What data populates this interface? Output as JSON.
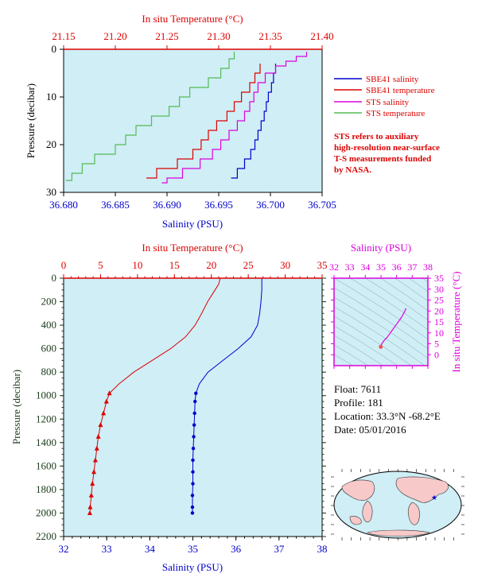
{
  "colors": {
    "red": "#dd0000",
    "blue": "#0000cc",
    "magenta": "#dd00dd",
    "green": "#55bb55",
    "plot_bg": "#cfeef6",
    "axis_dark": "#1a3a1a"
  },
  "chart_data": [
    {
      "type": "line",
      "xlabel": "Salinity (PSU)",
      "x2label": "In situ Temperature (°C)",
      "ylabel": "Pressure (decibar)",
      "xlim": [
        36.68,
        36.705
      ],
      "x2lim": [
        21.15,
        21.4
      ],
      "ylim": [
        30,
        0
      ],
      "x_ticks": [
        "36.680",
        "36.685",
        "36.690",
        "36.695",
        "36.700",
        "36.705"
      ],
      "x2_ticks": [
        "21.15",
        "21.20",
        "21.25",
        "21.30",
        "21.35",
        "21.40"
      ],
      "y_ticks": [
        "0",
        "10",
        "20",
        "30"
      ],
      "legend": {
        "position": "right",
        "entries": [
          {
            "label": "SBE41 salinity",
            "color": "#0000cc"
          },
          {
            "label": "SBE41 temperature",
            "color": "#dd0000"
          },
          {
            "label": "STS salinity",
            "color": "#dd00dd"
          },
          {
            "label": "STS temperature",
            "color": "#55bb55"
          }
        ]
      },
      "note": [
        "STS refers to auxiliary",
        "high-resolution near-surface",
        "T-S measurements funded",
        "by NASA."
      ],
      "series": [
        {
          "name": "SBE41 salinity",
          "axis": "salinity",
          "color": "#0000cc",
          "points": [
            [
              36.7005,
              3
            ],
            [
              36.7003,
              5
            ],
            [
              36.7001,
              7
            ],
            [
              36.6998,
              9
            ],
            [
              36.6996,
              11
            ],
            [
              36.6994,
              13
            ],
            [
              36.6991,
              15
            ],
            [
              36.6988,
              17
            ],
            [
              36.6985,
              19
            ],
            [
              36.6981,
              21
            ],
            [
              36.6975,
              23
            ],
            [
              36.6968,
              25
            ],
            [
              36.6962,
              27
            ]
          ]
        },
        {
          "name": "SBE41 temperature",
          "axis": "temperature",
          "color": "#dd0000",
          "points": [
            [
              21.34,
              3
            ],
            [
              21.335,
              5
            ],
            [
              21.33,
              7
            ],
            [
              21.322,
              9
            ],
            [
              21.315,
              11
            ],
            [
              21.308,
              13
            ],
            [
              21.298,
              15
            ],
            [
              21.29,
              17
            ],
            [
              21.283,
              19
            ],
            [
              21.275,
              21
            ],
            [
              21.26,
              23
            ],
            [
              21.24,
              25
            ],
            [
              21.23,
              27
            ]
          ]
        },
        {
          "name": "STS salinity",
          "axis": "salinity",
          "color": "#dd00dd",
          "points": [
            [
              36.7035,
              0.5
            ],
            [
              36.7025,
              1.5
            ],
            [
              36.7015,
              2.5
            ],
            [
              36.7005,
              3.5
            ],
            [
              36.6995,
              5
            ],
            [
              36.6988,
              7
            ],
            [
              36.6984,
              9
            ],
            [
              36.698,
              11
            ],
            [
              36.6975,
              13
            ],
            [
              36.6968,
              15
            ],
            [
              36.696,
              17
            ],
            [
              36.6952,
              19
            ],
            [
              36.6944,
              21
            ],
            [
              36.6932,
              23
            ],
            [
              36.6915,
              25
            ],
            [
              36.69,
              27
            ],
            [
              36.6895,
              28
            ]
          ]
        },
        {
          "name": "STS temperature",
          "axis": "temperature",
          "color": "#55bb55",
          "points": [
            [
              21.315,
              0.5
            ],
            [
              21.31,
              2
            ],
            [
              21.302,
              4
            ],
            [
              21.29,
              6
            ],
            [
              21.272,
              8
            ],
            [
              21.262,
              10
            ],
            [
              21.252,
              12
            ],
            [
              21.235,
              14
            ],
            [
              21.22,
              16
            ],
            [
              21.21,
              18
            ],
            [
              21.2,
              20
            ],
            [
              21.18,
              22
            ],
            [
              21.168,
              24
            ],
            [
              21.158,
              26
            ],
            [
              21.152,
              27.5
            ]
          ]
        }
      ]
    },
    {
      "type": "line",
      "xlabel": "Salinity (PSU)",
      "x2label": "In situ Temperature (°C)",
      "ylabel": "Pressure (decibar)",
      "xlim": [
        32,
        38
      ],
      "x2lim": [
        0,
        35
      ],
      "ylim": [
        2200,
        0
      ],
      "x_ticks": [
        "32",
        "33",
        "34",
        "35",
        "36",
        "37",
        "38"
      ],
      "x2_ticks": [
        "0",
        "5",
        "10",
        "15",
        "20",
        "25",
        "30",
        "35"
      ],
      "y_ticks": [
        "0",
        "200",
        "400",
        "600",
        "800",
        "1000",
        "1200",
        "1400",
        "1600",
        "1800",
        "2000",
        "2200"
      ],
      "series": [
        {
          "name": "Temperature",
          "axis": "temperature",
          "color": "#dd0000",
          "points": [
            [
              21.2,
              0
            ],
            [
              21,
              50
            ],
            [
              20.5,
              100
            ],
            [
              20,
              150
            ],
            [
              19.5,
              200
            ],
            [
              18.7,
              300
            ],
            [
              17.8,
              400
            ],
            [
              16.5,
              500
            ],
            [
              14.5,
              600
            ],
            [
              12,
              700
            ],
            [
              9.5,
              800
            ],
            [
              7.5,
              900
            ],
            [
              6.2,
              980
            ],
            [
              5.8,
              1050
            ],
            [
              5.4,
              1150
            ],
            [
              5.0,
              1250
            ],
            [
              4.7,
              1350
            ],
            [
              4.5,
              1450
            ],
            [
              4.3,
              1550
            ],
            [
              4.1,
              1650
            ],
            [
              3.9,
              1750
            ],
            [
              3.75,
              1850
            ],
            [
              3.6,
              1950
            ],
            [
              3.55,
              2000
            ]
          ]
        },
        {
          "name": "Salinity",
          "axis": "salinity",
          "color": "#0000cc",
          "points": [
            [
              36.6,
              0
            ],
            [
              36.6,
              100
            ],
            [
              36.58,
              200
            ],
            [
              36.55,
              300
            ],
            [
              36.5,
              400
            ],
            [
              36.35,
              500
            ],
            [
              36.05,
              600
            ],
            [
              35.7,
              700
            ],
            [
              35.35,
              800
            ],
            [
              35.15,
              900
            ],
            [
              35.07,
              980
            ],
            [
              35.05,
              1050
            ],
            [
              35.04,
              1150
            ],
            [
              35.03,
              1250
            ],
            [
              35.02,
              1350
            ],
            [
              35.01,
              1450
            ],
            [
              35.0,
              1550
            ],
            [
              35.0,
              1650
            ],
            [
              35.0,
              1750
            ],
            [
              34.99,
              1850
            ],
            [
              34.99,
              1950
            ],
            [
              34.99,
              2000
            ]
          ]
        }
      ]
    },
    {
      "type": "line",
      "xlabel": "Salinity (PSU)",
      "ylabel": "In situ Temperature (°C)",
      "xlim": [
        32,
        38
      ],
      "ylim": [
        -5,
        35
      ],
      "x_ticks": [
        "32",
        "33",
        "34",
        "35",
        "36",
        "37",
        "38"
      ],
      "y_ticks": [
        "0",
        "5",
        "10",
        "15",
        "20",
        "25",
        "30",
        "35"
      ],
      "series": [
        {
          "color": "#dd00dd",
          "points": [
            [
              36.6,
              21.2
            ],
            [
              36.5,
              19.5
            ],
            [
              36.3,
              17
            ],
            [
              36.0,
              14
            ],
            [
              35.7,
              11
            ],
            [
              35.4,
              8
            ],
            [
              35.2,
              6.5
            ],
            [
              35.05,
              5
            ],
            [
              35.0,
              4
            ],
            [
              34.99,
              3.6
            ]
          ]
        }
      ]
    }
  ],
  "float_info": {
    "float": "Float:  7611",
    "profile": "Profile:  181",
    "location": "Location:  33.3°N  -68.2°E",
    "date": "Date:  05/01/2016"
  }
}
